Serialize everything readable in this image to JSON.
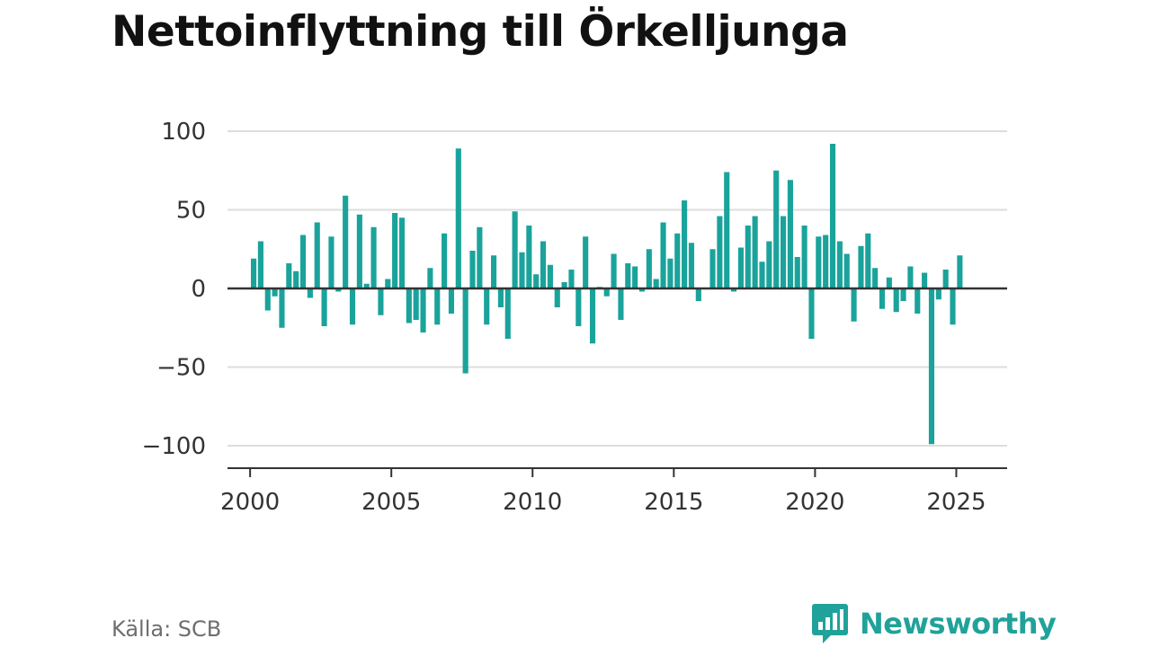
{
  "title": "Nettoinflyttning till Örkelljunga",
  "source": "Källa: SCB",
  "brand": {
    "name": "Newsworthy",
    "icon": "newsworthy-logo-icon",
    "color": "#20a29a"
  },
  "colors": {
    "bar": "#1aa39b",
    "grid": "#dddddd",
    "axis": "#333333"
  },
  "chart_data": {
    "type": "bar",
    "title": "Nettoinflyttning till Örkelljunga",
    "xlabel": "",
    "ylabel": "",
    "ylim": [
      -110,
      100
    ],
    "yticks": [
      100,
      50,
      0,
      -50,
      -100
    ],
    "ytick_labels": [
      "100",
      "50",
      "0",
      "−50",
      "−100"
    ],
    "xlim": [
      1999.2,
      2026.8
    ],
    "xticks": [
      2000,
      2005,
      2010,
      2015,
      2020,
      2025
    ],
    "xtick_labels": [
      "2000",
      "2005",
      "2010",
      "2015",
      "2020",
      "2025"
    ],
    "grid": true,
    "bar_interval": "quarter",
    "x_start": "2000 Q1",
    "x": [
      "2000 Q1",
      "2000 Q2",
      "2000 Q3",
      "2000 Q4",
      "2001 Q1",
      "2001 Q2",
      "2001 Q3",
      "2001 Q4",
      "2002 Q1",
      "2002 Q2",
      "2002 Q3",
      "2002 Q4",
      "2003 Q1",
      "2003 Q2",
      "2003 Q3",
      "2003 Q4",
      "2004 Q1",
      "2004 Q2",
      "2004 Q3",
      "2004 Q4",
      "2005 Q1",
      "2005 Q2",
      "2005 Q3",
      "2005 Q4",
      "2006 Q1",
      "2006 Q2",
      "2006 Q3",
      "2006 Q4",
      "2007 Q1",
      "2007 Q2",
      "2007 Q3",
      "2007 Q4",
      "2008 Q1",
      "2008 Q2",
      "2008 Q3",
      "2008 Q4",
      "2009 Q1",
      "2009 Q2",
      "2009 Q3",
      "2009 Q4",
      "2010 Q1",
      "2010 Q2",
      "2010 Q3",
      "2010 Q4",
      "2011 Q1",
      "2011 Q2",
      "2011 Q3",
      "2011 Q4",
      "2012 Q1",
      "2012 Q2",
      "2012 Q3",
      "2012 Q4",
      "2013 Q1",
      "2013 Q2",
      "2013 Q3",
      "2013 Q4",
      "2014 Q1",
      "2014 Q2",
      "2014 Q3",
      "2014 Q4",
      "2015 Q1",
      "2015 Q2",
      "2015 Q3",
      "2015 Q4",
      "2016 Q1",
      "2016 Q2",
      "2016 Q3",
      "2016 Q4",
      "2017 Q1",
      "2017 Q2",
      "2017 Q3",
      "2017 Q4",
      "2018 Q1",
      "2018 Q2",
      "2018 Q3",
      "2018 Q4",
      "2019 Q1",
      "2019 Q2",
      "2019 Q3",
      "2019 Q4",
      "2020 Q1",
      "2020 Q2",
      "2020 Q3",
      "2020 Q4",
      "2021 Q1",
      "2021 Q2",
      "2021 Q3",
      "2021 Q4",
      "2022 Q1",
      "2022 Q2",
      "2022 Q3",
      "2022 Q4",
      "2023 Q1",
      "2023 Q2",
      "2023 Q3",
      "2023 Q4",
      "2024 Q1",
      "2024 Q2",
      "2024 Q3",
      "2024 Q4",
      "2025 Q1",
      "2025 Q2"
    ],
    "values": [
      19,
      30,
      -14,
      -5,
      -25,
      16,
      11,
      34,
      -6,
      42,
      -24,
      33,
      -2,
      59,
      -23,
      47,
      3,
      39,
      -17,
      6,
      48,
      45,
      -22,
      -20,
      -28,
      13,
      -23,
      35,
      -16,
      89,
      -54,
      24,
      39,
      -23,
      21,
      -12,
      -32,
      49,
      23,
      40,
      9,
      30,
      15,
      -12,
      4,
      12,
      -24,
      33,
      -35,
      1,
      -5,
      22,
      -20,
      16,
      14,
      -2,
      25,
      6,
      42,
      19,
      35,
      56,
      29,
      -8,
      0,
      25,
      46,
      74,
      -2,
      26,
      40,
      46,
      17,
      30,
      75,
      46,
      69,
      20,
      40,
      -32,
      33,
      34,
      92,
      30,
      22,
      -21,
      27,
      35,
      13,
      -13,
      7,
      -15,
      -8,
      14,
      -16,
      10,
      -99,
      -7,
      12,
      -23,
      21,
      0
    ]
  }
}
